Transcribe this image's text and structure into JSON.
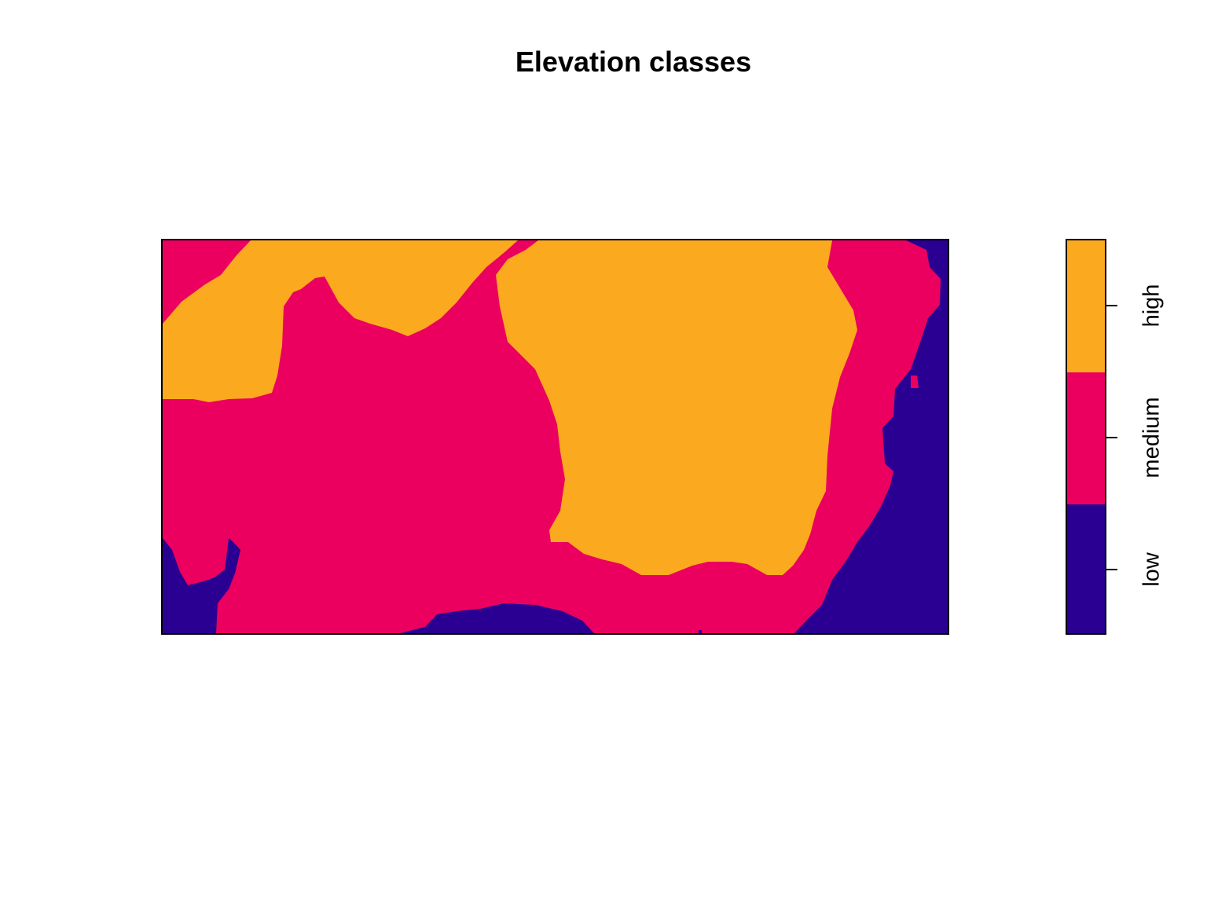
{
  "chart_data": {
    "type": "heatmap",
    "title": "Elevation classes",
    "legend": {
      "position": "right",
      "classes": [
        {
          "label": "high",
          "color": "#FBA91F"
        },
        {
          "label": "medium",
          "color": "#EB005F"
        },
        {
          "label": "low",
          "color": "#2A0093"
        }
      ]
    },
    "axes_shown": false
  }
}
